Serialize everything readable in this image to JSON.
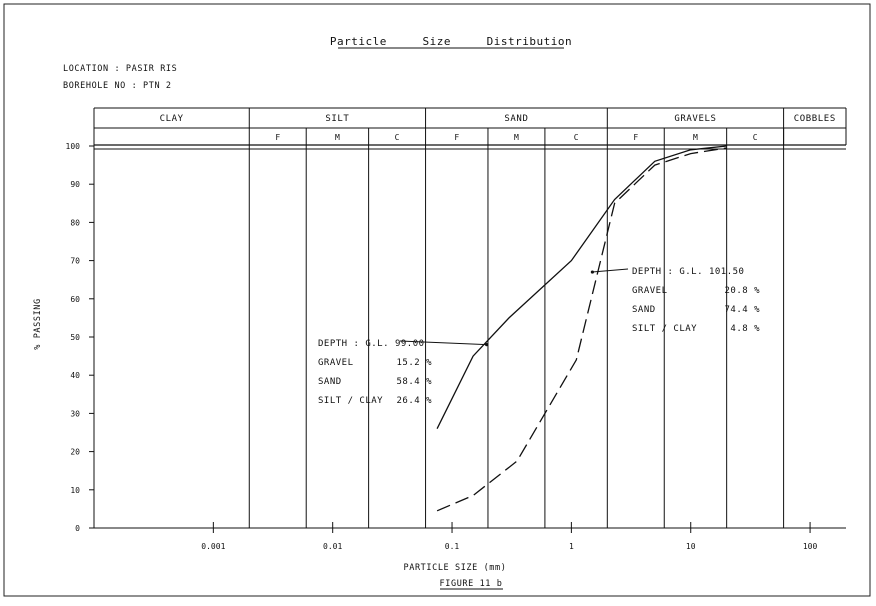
{
  "chart_data": {
    "type": "line",
    "title": "Particle     Size     Distribution",
    "location": "LOCATION : PASIR RIS",
    "borehole": "BOREHOLE NO : PTN 2",
    "ylabel": "% PASSING",
    "xlabel": "PARTICLE SIZE (mm)",
    "figure_caption": "FIGURE 11 b",
    "x_scale": "log",
    "xlim": [
      0.0001,
      200
    ],
    "ylim": [
      0,
      100
    ],
    "yticks": [
      "0",
      "10",
      "20",
      "30",
      "40",
      "50",
      "60",
      "70",
      "80",
      "90",
      "100"
    ],
    "xticks": [
      {
        "value": 0.001,
        "label": "0.001"
      },
      {
        "value": 0.01,
        "label": "0.01"
      },
      {
        "value": 0.1,
        "label": "0.1"
      },
      {
        "value": 1,
        "label": "1"
      },
      {
        "value": 10,
        "label": "10"
      },
      {
        "value": 100,
        "label": "100"
      }
    ],
    "soil_classes": [
      {
        "label": "CLAY",
        "from": 0.0001,
        "to": 0.002
      },
      {
        "label": "SILT",
        "from": 0.002,
        "to": 0.06
      },
      {
        "label": "SAND",
        "from": 0.06,
        "to": 2
      },
      {
        "label": "GRAVELS",
        "from": 2,
        "to": 60
      },
      {
        "label": "COBBLES",
        "from": 60,
        "to": 200
      }
    ],
    "sub_classes": [
      {
        "label": "F",
        "from": 0.002,
        "to": 0.006
      },
      {
        "label": "M",
        "from": 0.006,
        "to": 0.02
      },
      {
        "label": "C",
        "from": 0.02,
        "to": 0.06
      },
      {
        "label": "F",
        "from": 0.06,
        "to": 0.2
      },
      {
        "label": "M",
        "from": 0.2,
        "to": 0.6
      },
      {
        "label": "C",
        "from": 0.6,
        "to": 2
      },
      {
        "label": "F",
        "from": 2,
        "to": 6
      },
      {
        "label": "M",
        "from": 6,
        "to": 20
      },
      {
        "label": "C",
        "from": 20,
        "to": 60
      }
    ],
    "series": [
      {
        "style": "solid",
        "x": [
          0.075,
          0.15,
          0.3,
          1.0,
          2.3,
          5.0,
          10.0,
          20.0
        ],
        "y": [
          26,
          45,
          55,
          70,
          86,
          96,
          99,
          100
        ]
      },
      {
        "style": "dashed",
        "x": [
          0.075,
          0.15,
          0.35,
          1.1,
          2.3,
          5.0,
          10.0,
          20.0
        ],
        "y": [
          4.5,
          8.5,
          17.5,
          44,
          85,
          95,
          98,
          99.5
        ]
      }
    ],
    "annotations": [
      {
        "lines": [
          {
            "label": "DEPTH : G.L. 99.00",
            "value": ""
          },
          {
            "label": "GRAVEL",
            "value": "15.2 %"
          },
          {
            "label": "SAND",
            "value": "58.4 %"
          },
          {
            "label": "SILT / CLAY",
            "value": "26.4 %"
          }
        ]
      },
      {
        "lines": [
          {
            "label": "DEPTH : G.L. 101.50",
            "value": ""
          },
          {
            "label": "GRAVEL",
            "value": "20.8 %"
          },
          {
            "label": "SAND",
            "value": "74.4 %"
          },
          {
            "label": "SILT / CLAY",
            "value": "4.8 %"
          }
        ]
      }
    ]
  }
}
